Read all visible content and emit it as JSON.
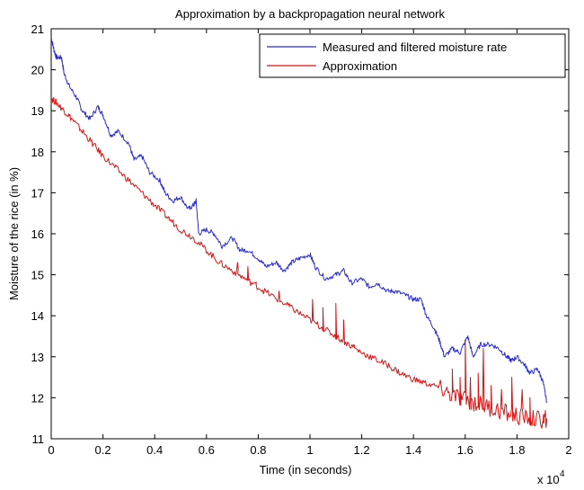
{
  "chart_data": {
    "type": "line",
    "title": "Approximation by a backpropagation neural network",
    "xlabel": "Time (in seconds)",
    "ylabel": "Moisture of the rice (in %)",
    "xlim": [
      0,
      2
    ],
    "ylim": [
      11,
      21
    ],
    "x_multiplier_label": "x 10",
    "x_multiplier_exponent": "4",
    "x_ticks": [
      "0",
      "0.2",
      "0.4",
      "0.6",
      "0.8",
      "1",
      "1.2",
      "1.4",
      "1.6",
      "1.8",
      "2"
    ],
    "y_ticks": [
      "11",
      "12",
      "13",
      "14",
      "15",
      "16",
      "17",
      "18",
      "19",
      "20",
      "21"
    ],
    "legend_position": "top-right",
    "grid": false,
    "series": [
      {
        "name": "Measured and filtered moisture rate",
        "color": "#2b2bd8",
        "points": [
          [
            0.0,
            20.8
          ],
          [
            0.01,
            20.5
          ],
          [
            0.02,
            20.3
          ],
          [
            0.04,
            20.3
          ],
          [
            0.05,
            19.9
          ],
          [
            0.07,
            19.6
          ],
          [
            0.1,
            19.3
          ],
          [
            0.12,
            19.0
          ],
          [
            0.15,
            18.8
          ],
          [
            0.18,
            19.1
          ],
          [
            0.2,
            18.9
          ],
          [
            0.23,
            18.4
          ],
          [
            0.26,
            18.5
          ],
          [
            0.3,
            18.2
          ],
          [
            0.32,
            17.8
          ],
          [
            0.35,
            17.9
          ],
          [
            0.38,
            17.5
          ],
          [
            0.42,
            17.3
          ],
          [
            0.44,
            17.0
          ],
          [
            0.47,
            16.8
          ],
          [
            0.5,
            16.9
          ],
          [
            0.53,
            16.6
          ],
          [
            0.55,
            16.7
          ],
          [
            0.56,
            16.8
          ],
          [
            0.57,
            16.0
          ],
          [
            0.6,
            16.1
          ],
          [
            0.63,
            16.0
          ],
          [
            0.66,
            15.7
          ],
          [
            0.7,
            15.9
          ],
          [
            0.73,
            15.6
          ],
          [
            0.76,
            15.6
          ],
          [
            0.8,
            15.4
          ],
          [
            0.83,
            15.2
          ],
          [
            0.87,
            15.3
          ],
          [
            0.9,
            15.1
          ],
          [
            0.93,
            15.3
          ],
          [
            0.96,
            15.4
          ],
          [
            1.0,
            15.5
          ],
          [
            1.02,
            15.2
          ],
          [
            1.06,
            14.9
          ],
          [
            1.1,
            15.0
          ],
          [
            1.13,
            15.1
          ],
          [
            1.16,
            14.8
          ],
          [
            1.2,
            14.9
          ],
          [
            1.23,
            14.7
          ],
          [
            1.26,
            14.8
          ],
          [
            1.3,
            14.6
          ],
          [
            1.33,
            14.6
          ],
          [
            1.37,
            14.5
          ],
          [
            1.4,
            14.4
          ],
          [
            1.43,
            14.4
          ],
          [
            1.45,
            14.0
          ],
          [
            1.48,
            13.7
          ],
          [
            1.5,
            13.4
          ],
          [
            1.52,
            13.0
          ],
          [
            1.55,
            13.2
          ],
          [
            1.58,
            13.1
          ],
          [
            1.61,
            13.5
          ],
          [
            1.63,
            13.0
          ],
          [
            1.66,
            13.3
          ],
          [
            1.7,
            13.3
          ],
          [
            1.73,
            13.2
          ],
          [
            1.76,
            13.0
          ],
          [
            1.78,
            12.9
          ],
          [
            1.8,
            13.0
          ],
          [
            1.83,
            12.8
          ],
          [
            1.85,
            12.6
          ],
          [
            1.88,
            12.7
          ],
          [
            1.9,
            12.4
          ],
          [
            1.915,
            11.9
          ]
        ]
      },
      {
        "name": "Approximation",
        "color": "#e01010",
        "points": [
          [
            0.0,
            19.3
          ],
          [
            0.02,
            19.2
          ],
          [
            0.05,
            19.0
          ],
          [
            0.08,
            18.8
          ],
          [
            0.12,
            18.5
          ],
          [
            0.16,
            18.2
          ],
          [
            0.2,
            17.9
          ],
          [
            0.25,
            17.6
          ],
          [
            0.3,
            17.3
          ],
          [
            0.35,
            17.0
          ],
          [
            0.4,
            16.7
          ],
          [
            0.45,
            16.4
          ],
          [
            0.5,
            16.1
          ],
          [
            0.55,
            15.9
          ],
          [
            0.6,
            15.6
          ],
          [
            0.65,
            15.3
          ],
          [
            0.7,
            15.1
          ],
          [
            0.75,
            14.9
          ],
          [
            0.8,
            14.7
          ],
          [
            0.85,
            14.5
          ],
          [
            0.9,
            14.3
          ],
          [
            0.95,
            14.1
          ],
          [
            1.0,
            13.9
          ],
          [
            1.05,
            13.7
          ],
          [
            1.1,
            13.5
          ],
          [
            1.15,
            13.3
          ],
          [
            1.2,
            13.1
          ],
          [
            1.25,
            12.95
          ],
          [
            1.3,
            12.8
          ],
          [
            1.35,
            12.6
          ],
          [
            1.4,
            12.45
          ],
          [
            1.45,
            12.35
          ],
          [
            1.5,
            12.25
          ],
          [
            1.55,
            12.05
          ],
          [
            1.6,
            11.95
          ],
          [
            1.65,
            11.85
          ],
          [
            1.7,
            11.75
          ],
          [
            1.75,
            11.65
          ],
          [
            1.8,
            11.55
          ],
          [
            1.85,
            11.5
          ],
          [
            1.9,
            11.45
          ],
          [
            1.915,
            11.5
          ]
        ],
        "spikes": [
          [
            0.72,
            15.3
          ],
          [
            0.76,
            15.2
          ],
          [
            0.79,
            14.8
          ],
          [
            0.88,
            14.6
          ],
          [
            0.92,
            14.3
          ],
          [
            1.01,
            14.4
          ],
          [
            1.05,
            14.2
          ],
          [
            1.1,
            14.3
          ],
          [
            1.13,
            13.9
          ],
          [
            1.17,
            13.3
          ],
          [
            1.55,
            12.7
          ],
          [
            1.58,
            12.5
          ],
          [
            1.6,
            13.4
          ],
          [
            1.62,
            12.5
          ],
          [
            1.65,
            12.6
          ],
          [
            1.67,
            13.2
          ],
          [
            1.7,
            12.3
          ],
          [
            1.74,
            12.2
          ],
          [
            1.78,
            12.5
          ],
          [
            1.82,
            12.2
          ],
          [
            1.85,
            12.0
          ]
        ]
      }
    ]
  }
}
